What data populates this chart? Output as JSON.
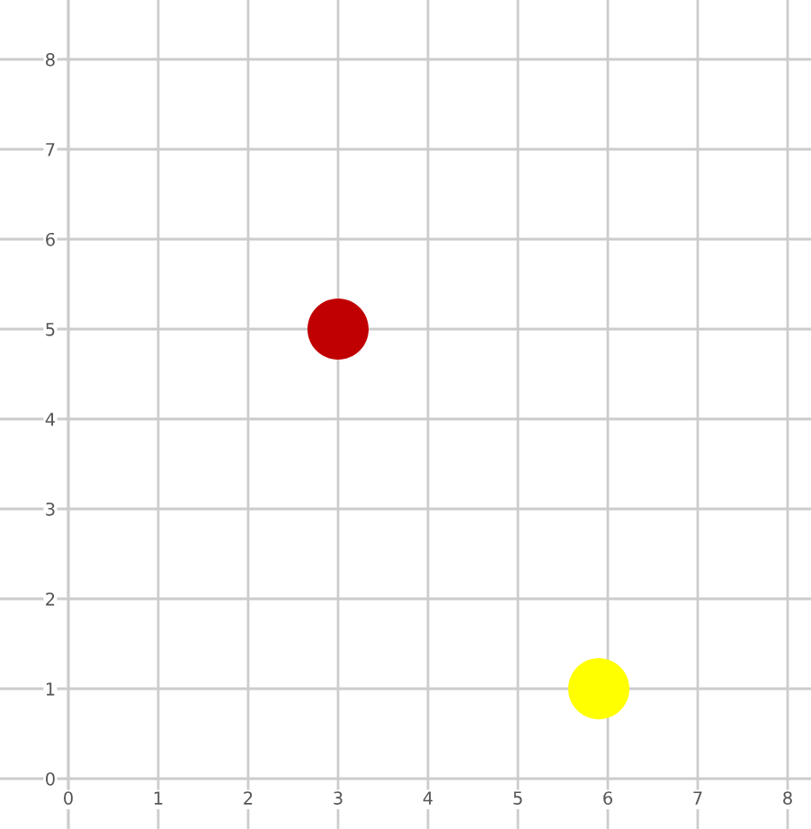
{
  "chart_data": {
    "type": "scatter",
    "series": [
      {
        "color": "#c00000",
        "x": [
          3
        ],
        "values": [
          5
        ]
      },
      {
        "color": "#ffff00",
        "x": [
          5.9
        ],
        "values": [
          1
        ]
      }
    ],
    "xlim": [
      -0.76,
      8.26
    ],
    "ylim": [
      -0.56,
      8.66
    ],
    "xticks": [
      0,
      1,
      2,
      3,
      4,
      5,
      6,
      7,
      8
    ],
    "yticks": [
      0,
      1,
      2,
      3,
      4,
      5,
      6,
      7,
      8
    ],
    "grid": true,
    "marker": "circle"
  }
}
